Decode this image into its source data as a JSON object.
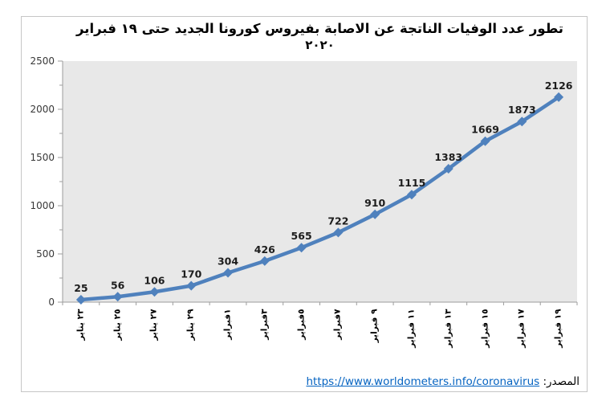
{
  "chart_data": {
    "type": "line",
    "title": "تطور عدد الوفيات الناتجة عن الاصابة بفيروس كورونا الجديد حتى ١٩ فبراير",
    "title_line2": "٢٠٢٠",
    "categories": [
      "٢٣ يناير",
      "٢٥ يناير",
      "٢٧ يناير",
      "٢٩ يناير",
      "١فبراير",
      "٣فبراير",
      "٥فبراير",
      "٧فبراير",
      "٩ فبراير",
      "١١ فبراير",
      "١٣ فبراير",
      "١٥ فبراير",
      "١٧ فبراير",
      "١٩ فبراير"
    ],
    "values": [
      25,
      56,
      106,
      170,
      304,
      426,
      565,
      722,
      910,
      1115,
      1383,
      1669,
      1873,
      2126
    ],
    "ylim": [
      0,
      2500
    ],
    "yticks": [
      0,
      500,
      1000,
      1500,
      2000,
      2500
    ],
    "y_minor_step": 250,
    "xlabel": "",
    "ylabel": "",
    "grid": false,
    "legend": "none",
    "line_color": "#4f81bd",
    "plot_bg": "#e8e8e8",
    "axis_color": "#9c9c9c"
  },
  "source": {
    "label": "المصدر:",
    "url_text": "https://www.worldometers.info/coronavirus"
  }
}
